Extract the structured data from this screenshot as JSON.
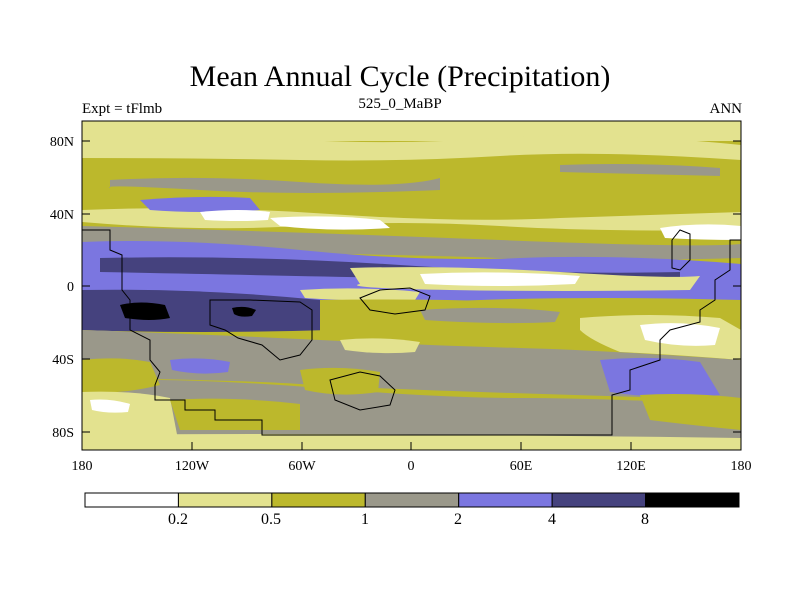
{
  "title": "Mean Annual Cycle (Precipitation)",
  "subtitle_left": "Expt = tFlmb",
  "subtitle_center": "525_0_MaBP",
  "subtitle_right": "ANN",
  "y_ticks": [
    "80N",
    "40N",
    "0",
    "40S",
    "80S"
  ],
  "x_ticks": [
    "180",
    "120W",
    "60W",
    "0",
    "60E",
    "120E",
    "180"
  ],
  "legend": {
    "levels": [
      "0.2",
      "0.5",
      "1",
      "2",
      "4",
      "8"
    ],
    "colors": [
      "#ffffff",
      "#e3e28f",
      "#bcb82c",
      "#9a988a",
      "#7b76e0",
      "#45427e",
      "#000000"
    ]
  }
}
